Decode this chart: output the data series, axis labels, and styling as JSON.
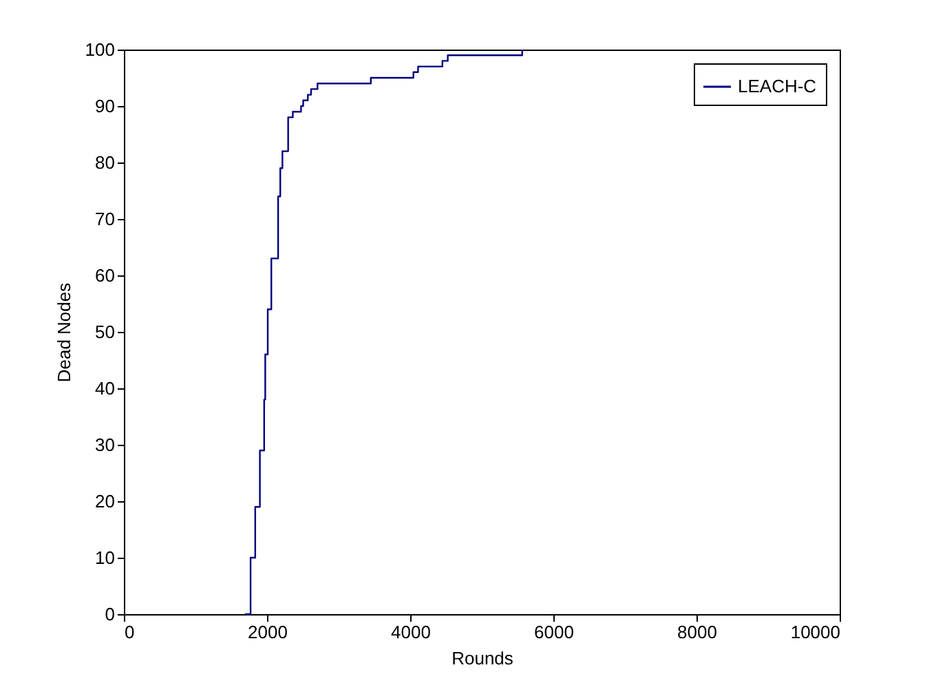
{
  "chart_data": {
    "type": "step",
    "xlabel": "Rounds",
    "ylabel": "Dead Nodes",
    "x": [
      1690,
      1770,
      1835,
      1900,
      1960,
      1975,
      2010,
      2060,
      2155,
      2185,
      2215,
      2295,
      2360,
      2475,
      2505,
      2570,
      2615,
      2705,
      3450,
      4045,
      4110,
      4450,
      4525,
      5565
    ],
    "series": [
      {
        "name": "LEACH-C",
        "color": "#000080",
        "values": [
          0,
          10,
          19,
          29,
          38,
          46,
          54,
          63,
          74,
          79,
          82,
          88,
          89,
          90,
          91,
          92,
          93,
          94,
          95,
          96,
          97,
          98,
          99,
          100
        ]
      }
    ],
    "xlim": [
      0,
      10000
    ],
    "xticks": [
      0,
      2000,
      4000,
      6000,
      8000,
      10000
    ],
    "ylim": [
      0,
      100
    ],
    "yticks": [
      0,
      10,
      20,
      30,
      40,
      50,
      60,
      70,
      80,
      90,
      100
    ],
    "legend": "top right"
  }
}
